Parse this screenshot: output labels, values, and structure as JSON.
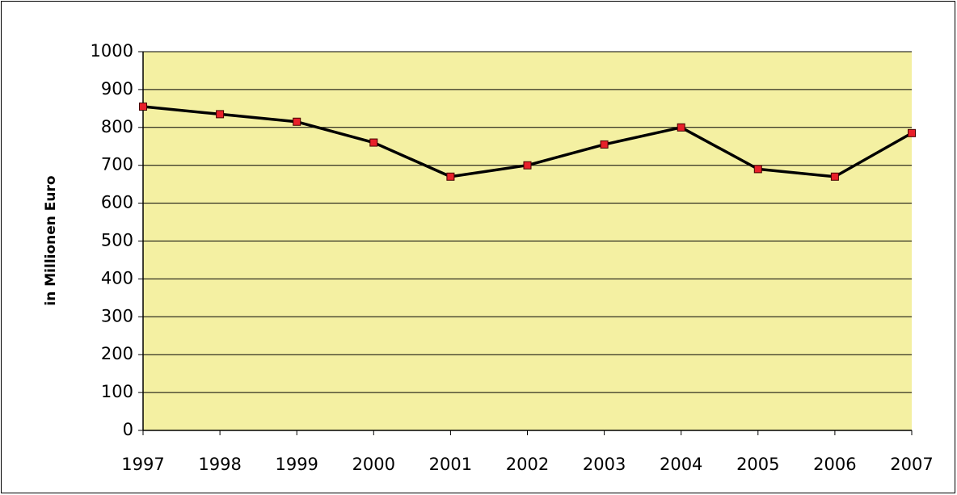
{
  "chart_data": {
    "type": "line",
    "y_label": "in Millionen Euro",
    "x": [
      1997,
      1998,
      1999,
      2000,
      2001,
      2002,
      2003,
      2004,
      2005,
      2006,
      2007
    ],
    "xlim": [
      1997,
      2007
    ],
    "xticks": [
      1997,
      1998,
      1999,
      2000,
      2001,
      2002,
      2003,
      2004,
      2005,
      2006,
      2007
    ],
    "series": [
      {
        "color": "#000000",
        "marker_color": "#e8202a",
        "values": [
          855,
          835,
          815,
          760,
          670,
          700,
          755,
          800,
          690,
          670,
          785
        ]
      }
    ],
    "ylim": [
      0,
      1000
    ],
    "yticks": [
      0,
      100,
      200,
      300,
      400,
      500,
      600,
      700,
      800,
      900,
      1000
    ],
    "grid": true
  }
}
